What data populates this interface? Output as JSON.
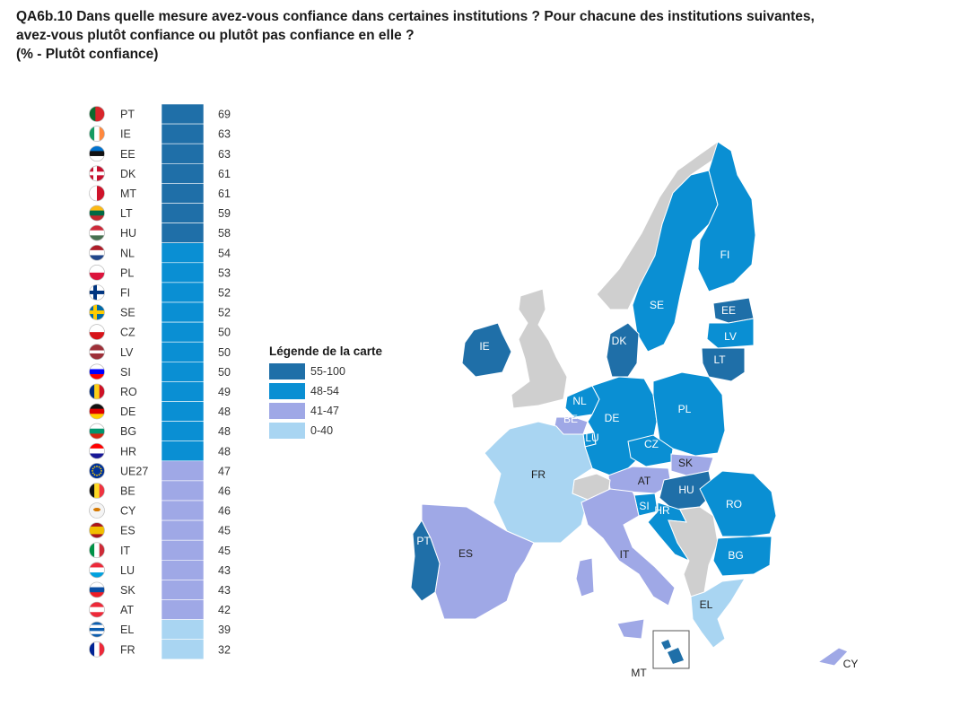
{
  "header": {
    "line1": "QA6b.10 Dans quelle mesure avez-vous confiance dans certaines institutions ? Pour chacune des institutions suivantes,",
    "line2": "avez-vous plutôt confiance ou plutôt pas confiance en elle ?",
    "line3": "(%  - Plutôt confiance)"
  },
  "colors": {
    "band_55_100": "#1f6fa8",
    "band_48_54": "#0a8fd3",
    "band_41_47": "#9fa8e6",
    "band_0_40": "#a9d5f2",
    "no_data": "#cfcfcf"
  },
  "legend": {
    "title": "Légende de la carte",
    "items": [
      {
        "label": "55-100",
        "color": "#1f6fa8"
      },
      {
        "label": "48-54",
        "color": "#0a8fd3"
      },
      {
        "label": "41-47",
        "color": "#9fa8e6"
      },
      {
        "label": "0-40",
        "color": "#a9d5f2"
      }
    ]
  },
  "chart_data": {
    "type": "bar",
    "categories": [
      "PT",
      "IE",
      "EE",
      "DK",
      "MT",
      "LT",
      "HU",
      "NL",
      "PL",
      "FI",
      "SE",
      "CZ",
      "LV",
      "SI",
      "RO",
      "DE",
      "BG",
      "HR",
      "UE27",
      "BE",
      "CY",
      "ES",
      "IT",
      "LU",
      "SK",
      "AT",
      "EL",
      "FR"
    ],
    "values": [
      69,
      63,
      63,
      61,
      61,
      59,
      58,
      54,
      53,
      52,
      52,
      50,
      50,
      50,
      49,
      48,
      48,
      48,
      47,
      46,
      46,
      45,
      45,
      43,
      43,
      42,
      39,
      32
    ],
    "xlabel": "",
    "ylabel": "",
    "value_labels": true
  },
  "map": {
    "labels": [
      "FI",
      "SE",
      "EE",
      "LV",
      "LT",
      "DK",
      "IE",
      "NL",
      "BE",
      "LU",
      "DE",
      "PL",
      "CZ",
      "SK",
      "AT",
      "HU",
      "SI",
      "HR",
      "RO",
      "BG",
      "FR",
      "PT",
      "ES",
      "IT",
      "EL",
      "MT",
      "CY"
    ]
  }
}
